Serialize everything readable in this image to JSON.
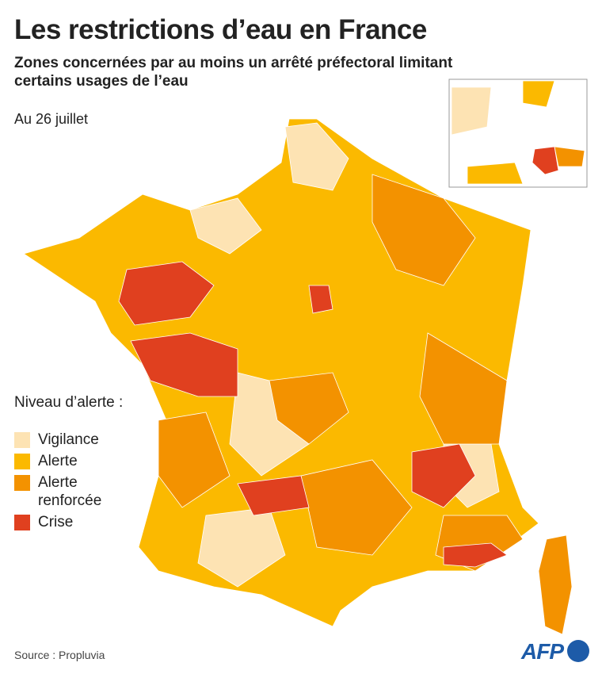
{
  "header": {
    "title": "Les restrictions d’eau en France",
    "subtitle": "Zones concernées par au moins un arrêté préfectoral limitant certains usages de l’eau",
    "date": "Au 26 juillet"
  },
  "legend": {
    "title": "Niveau d’alerte :",
    "items": [
      {
        "label": "Vigilance",
        "color": "#fde3b3"
      },
      {
        "label": "Alerte",
        "color": "#fbb900"
      },
      {
        "label": "Alerte renforcée",
        "color": "#f39200"
      },
      {
        "label": "Crise",
        "color": "#e0401f"
      }
    ]
  },
  "footer": {
    "source": "Source : Propluvia",
    "logo": "AFP"
  }
}
